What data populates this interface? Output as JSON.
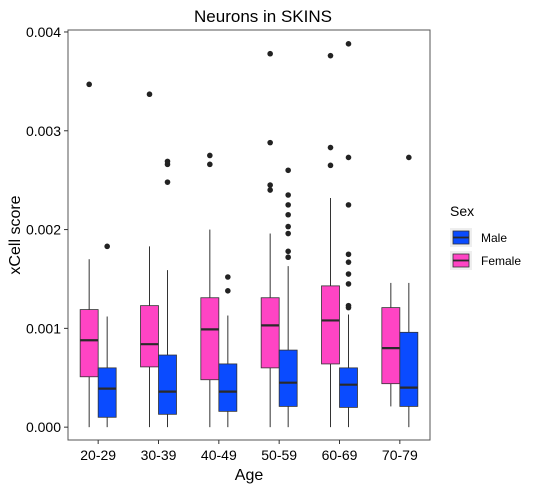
{
  "chart_data": {
    "type": "boxplot",
    "title": "Neurons in SKINS",
    "xlabel": "Age",
    "ylabel": "xCell score",
    "ylim": [
      -0.00013,
      0.00402
    ],
    "yticks": [
      0.0,
      0.001,
      0.002,
      0.003,
      0.004
    ],
    "ytick_labels": [
      "0.000",
      "0.001",
      "0.002",
      "0.003",
      "0.004"
    ],
    "categories": [
      "20-29",
      "30-39",
      "40-49",
      "50-59",
      "60-69",
      "70-79"
    ],
    "grid": false,
    "legend": {
      "title": "Sex",
      "position": "right",
      "entries": [
        "Male",
        "Female"
      ]
    },
    "colors": {
      "Female": "#ff44c4",
      "Male": "#0a4bff",
      "median": "#2a2a2a",
      "frame": "#555555"
    },
    "series": [
      {
        "name": "Female",
        "boxes": [
          {
            "min": 0.0,
            "q1": 0.00051,
            "median": 0.00088,
            "q3": 0.00119,
            "max": 0.0017,
            "outliers": [
              0.00347
            ]
          },
          {
            "min": 0.0,
            "q1": 0.00061,
            "median": 0.00084,
            "q3": 0.00123,
            "max": 0.00183,
            "outliers": [
              0.00337
            ]
          },
          {
            "min": 0.0,
            "q1": 0.00048,
            "median": 0.00099,
            "q3": 0.00131,
            "max": 0.002,
            "outliers": [
              0.00275,
              0.00266
            ]
          },
          {
            "min": 0.0,
            "q1": 0.0006,
            "median": 0.00103,
            "q3": 0.00131,
            "max": 0.00196,
            "outliers": [
              0.00378,
              0.00288,
              0.00245,
              0.0024
            ]
          },
          {
            "min": 0.0,
            "q1": 0.00064,
            "median": 0.00108,
            "q3": 0.00143,
            "max": 0.00232,
            "outliers": [
              0.00376,
              0.00283,
              0.00265
            ]
          },
          {
            "min": 0.00021,
            "q1": 0.00044,
            "median": 0.0008,
            "q3": 0.00121,
            "max": 0.00146,
            "outliers": []
          }
        ]
      },
      {
        "name": "Male",
        "boxes": [
          {
            "min": 0.0,
            "q1": 0.0001,
            "median": 0.00039,
            "q3": 0.0006,
            "max": 0.00112,
            "outliers": [
              0.00183
            ]
          },
          {
            "min": 0.0,
            "q1": 0.00013,
            "median": 0.00036,
            "q3": 0.00073,
            "max": 0.00159,
            "outliers": [
              0.00269,
              0.00266,
              0.00248
            ]
          },
          {
            "min": 0.0,
            "q1": 0.00016,
            "median": 0.00036,
            "q3": 0.00064,
            "max": 0.00113,
            "outliers": [
              0.00152,
              0.00138
            ]
          },
          {
            "min": 0.0,
            "q1": 0.00021,
            "median": 0.00045,
            "q3": 0.00078,
            "max": 0.00163,
            "outliers": [
              0.0026,
              0.00235,
              0.00225,
              0.00215,
              0.00203,
              0.00196,
              0.00178,
              0.00172
            ]
          },
          {
            "min": 0.0,
            "q1": 0.0002,
            "median": 0.00043,
            "q3": 0.0006,
            "max": 0.00114,
            "outliers": [
              0.00388,
              0.00273,
              0.00225,
              0.00175,
              0.00167,
              0.00155,
              0.00145,
              0.00123,
              0.00121
            ]
          },
          {
            "min": 0.0,
            "q1": 0.00021,
            "median": 0.0004,
            "q3": 0.00096,
            "max": 0.00146,
            "outliers": [
              0.00273
            ]
          }
        ]
      }
    ]
  }
}
